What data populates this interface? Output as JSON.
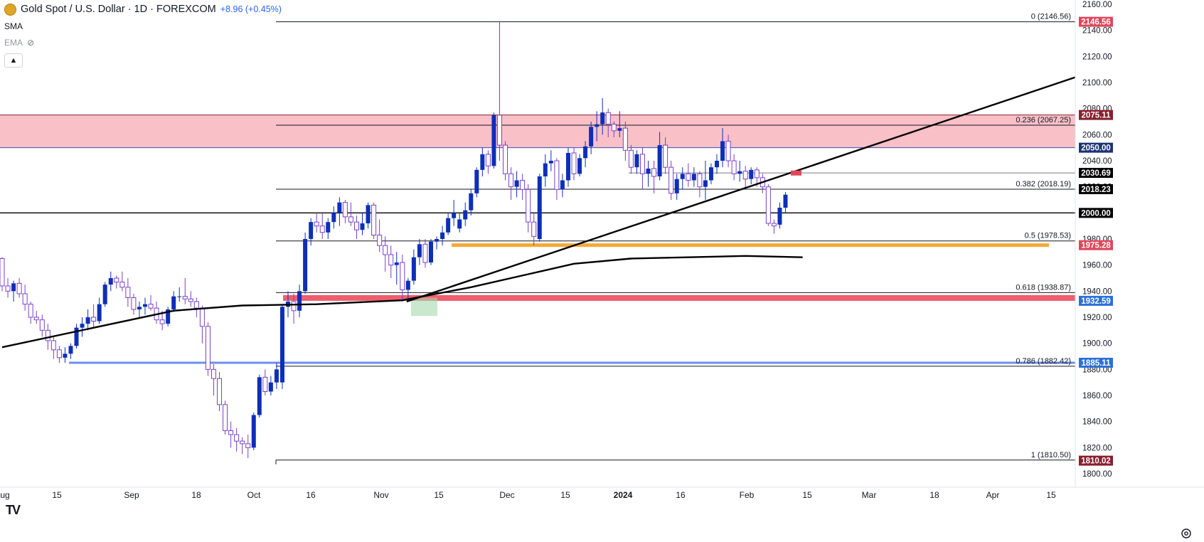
{
  "header": {
    "symbol": "Gold Spot / U.S. Dollar · 1D · FOREXCOM",
    "change": "+8.96 (+0.45%)",
    "indicators": [
      "SMA",
      "EMA"
    ],
    "icons": [
      "gold-coin-icon",
      "eye-hidden-icon",
      "chevron-up-icon",
      "tradingview-logo-icon",
      "settings-icon"
    ]
  },
  "colors": {
    "up": "#0d2fb8",
    "down_fill": "#ffffff",
    "down_stroke": "#7b3fc4",
    "resistance_zone": "#f9c0c8",
    "support_zone": "#ee5e6f",
    "orange_level": "#f7a936",
    "blue_level": "#6b8ff0",
    "green_box": "#a5d8ab",
    "ma": "#000000",
    "label_dark_red": "#8a1f2e",
    "label_red": "#e0475a",
    "label_navy": "#1b3476",
    "label_black": "#000000",
    "label_blue": "#2e6fd6"
  },
  "chart_data": {
    "type": "candlestick",
    "title": "Gold Spot / U.S. Dollar · 1D · FOREXCOM",
    "x_ticks": [
      "Aug",
      "15",
      "Sep",
      "18",
      "Oct",
      "16",
      "Nov",
      "15",
      "Dec",
      "15",
      "2024",
      "16",
      "Feb",
      "15",
      "Mar",
      "18",
      "Apr",
      "15"
    ],
    "y_ticks": [
      1800,
      1820,
      1840,
      1860,
      1880,
      1900,
      1920,
      1940,
      1960,
      1980,
      2000,
      2020,
      2040,
      2060,
      2080,
      2100,
      2120,
      2140,
      2160
    ],
    "ylim": [
      1794,
      2163
    ],
    "ohlc": [
      [
        1965,
        1966,
        1940,
        1944
      ],
      [
        1944,
        1950,
        1935,
        1940
      ],
      [
        1940,
        1948,
        1932,
        1946
      ],
      [
        1946,
        1950,
        1935,
        1938
      ],
      [
        1938,
        1945,
        1925,
        1930
      ],
      [
        1930,
        1932,
        1915,
        1920
      ],
      [
        1920,
        1925,
        1915,
        1918
      ],
      [
        1918,
        1922,
        1905,
        1910
      ],
      [
        1910,
        1915,
        1895,
        1902
      ],
      [
        1902,
        1905,
        1888,
        1895
      ],
      [
        1895,
        1898,
        1885,
        1889
      ],
      [
        1889,
        1897,
        1885,
        1892
      ],
      [
        1892,
        1900,
        1888,
        1898
      ],
      [
        1898,
        1915,
        1896,
        1912
      ],
      [
        1912,
        1920,
        1905,
        1915
      ],
      [
        1915,
        1926,
        1910,
        1920
      ],
      [
        1920,
        1930,
        1912,
        1917
      ],
      [
        1917,
        1935,
        1915,
        1930
      ],
      [
        1930,
        1947,
        1928,
        1945
      ],
      [
        1945,
        1955,
        1940,
        1950
      ],
      [
        1950,
        1952,
        1942,
        1947
      ],
      [
        1947,
        1955,
        1940,
        1943
      ],
      [
        1943,
        1950,
        1928,
        1935
      ],
      [
        1935,
        1938,
        1922,
        1926
      ],
      [
        1926,
        1932,
        1920,
        1928
      ],
      [
        1928,
        1935,
        1922,
        1930
      ],
      [
        1930,
        1937,
        1925,
        1927
      ],
      [
        1927,
        1932,
        1915,
        1918
      ],
      [
        1918,
        1925,
        1910,
        1915
      ],
      [
        1915,
        1928,
        1913,
        1926
      ],
      [
        1926,
        1940,
        1924,
        1936
      ],
      [
        1936,
        1943,
        1932,
        1936
      ],
      [
        1936,
        1950,
        1930,
        1934
      ],
      [
        1934,
        1940,
        1928,
        1932
      ],
      [
        1932,
        1935,
        1920,
        1927
      ],
      [
        1927,
        1929,
        1900,
        1913
      ],
      [
        1913,
        1916,
        1875,
        1880
      ],
      [
        1880,
        1884,
        1860,
        1873
      ],
      [
        1873,
        1878,
        1848,
        1853
      ],
      [
        1853,
        1856,
        1830,
        1833
      ],
      [
        1833,
        1840,
        1820,
        1830
      ],
      [
        1830,
        1835,
        1817,
        1825
      ],
      [
        1825,
        1828,
        1815,
        1823
      ],
      [
        1823,
        1830,
        1812,
        1820
      ],
      [
        1820,
        1847,
        1818,
        1845
      ],
      [
        1845,
        1876,
        1843,
        1874
      ],
      [
        1874,
        1880,
        1860,
        1863
      ],
      [
        1863,
        1875,
        1860,
        1870
      ],
      [
        1870,
        1885,
        1865,
        1880
      ],
      [
        1870,
        1930,
        1865,
        1928
      ],
      [
        1928,
        1940,
        1920,
        1932
      ],
      [
        1932,
        1938,
        1915,
        1925
      ],
      [
        1925,
        1945,
        1920,
        1940
      ],
      [
        1940,
        1985,
        1938,
        1980
      ],
      [
        1980,
        1996,
        1975,
        1993
      ],
      [
        1993,
        2000,
        1985,
        1990
      ],
      [
        1990,
        2000,
        1980,
        1985
      ],
      [
        1985,
        1996,
        1980,
        1993
      ],
      [
        1993,
        2005,
        1988,
        2000
      ],
      [
        2000,
        2012,
        1990,
        2008
      ],
      [
        2008,
        2010,
        1992,
        1997
      ],
      [
        1997,
        2008,
        1990,
        1993
      ],
      [
        1993,
        1998,
        1980,
        1987
      ],
      [
        1987,
        2000,
        1983,
        1992
      ],
      [
        1992,
        2008,
        1988,
        2006
      ],
      [
        2006,
        2008,
        1980,
        1983
      ],
      [
        1983,
        1995,
        1970,
        1975
      ],
      [
        1975,
        1982,
        1955,
        1968
      ],
      [
        1968,
        1975,
        1950,
        1960
      ],
      [
        1960,
        1970,
        1945,
        1962
      ],
      [
        1962,
        1968,
        1932,
        1941
      ],
      [
        1941,
        1950,
        1933,
        1948
      ],
      [
        1948,
        1972,
        1945,
        1966
      ],
      [
        1966,
        1980,
        1960,
        1976
      ],
      [
        1976,
        1980,
        1958,
        1962
      ],
      [
        1962,
        1980,
        1960,
        1978
      ],
      [
        1978,
        1982,
        1972,
        1980
      ],
      [
        1980,
        1990,
        1975,
        1985
      ],
      [
        1985,
        2000,
        1983,
        1996
      ],
      [
        1996,
        2010,
        1990,
        2000
      ],
      [
        1988,
        2000,
        1985,
        1995
      ],
      [
        1995,
        2008,
        1990,
        2002
      ],
      [
        2002,
        2018,
        1998,
        2015
      ],
      [
        2015,
        2035,
        2012,
        2033
      ],
      [
        2033,
        2050,
        2028,
        2045
      ],
      [
        2045,
        2048,
        2030,
        2036
      ],
      [
        2036,
        2077,
        2034,
        2075
      ],
      [
        2075,
        2146.56,
        2040,
        2052
      ],
      [
        2052,
        2055,
        2025,
        2030
      ],
      [
        2030,
        2035,
        2010,
        2020
      ],
      [
        2020,
        2032,
        2012,
        2025
      ],
      [
        2025,
        2030,
        2010,
        2018
      ],
      [
        2018,
        2022,
        1985,
        1993
      ],
      [
        1993,
        2000,
        1975,
        1982
      ],
      [
        1980,
        2030,
        1978,
        2028
      ],
      [
        2028,
        2045,
        2020,
        2038
      ],
      [
        2038,
        2048,
        2032,
        2040
      ],
      [
        2040,
        2042,
        2010,
        2018
      ],
      [
        2018,
        2030,
        2012,
        2025
      ],
      [
        2025,
        2050,
        2020,
        2046
      ],
      [
        2046,
        2050,
        2025,
        2030
      ],
      [
        2030,
        2045,
        2028,
        2042
      ],
      [
        2042,
        2055,
        2035,
        2051
      ],
      [
        2051,
        2070,
        2045,
        2066
      ],
      [
        2066,
        2078,
        2055,
        2068
      ],
      [
        2068,
        2088,
        2060,
        2077
      ],
      [
        2077,
        2080,
        2058,
        2068
      ],
      [
        2068,
        2070,
        2058,
        2063
      ],
      [
        2063,
        2078,
        2058,
        2065
      ],
      [
        2065,
        2070,
        2040,
        2048
      ],
      [
        2048,
        2052,
        2030,
        2035
      ],
      [
        2035,
        2048,
        2030,
        2045
      ],
      [
        2045,
        2050,
        2018,
        2030
      ],
      [
        2030,
        2040,
        2020,
        2034
      ],
      [
        2034,
        2040,
        2015,
        2028
      ],
      [
        2028,
        2062,
        2025,
        2052
      ],
      [
        2052,
        2058,
        2030,
        2035
      ],
      [
        2035,
        2040,
        2010,
        2015
      ],
      [
        2015,
        2030,
        2010,
        2026
      ],
      [
        2026,
        2035,
        2018,
        2030
      ],
      [
        2030,
        2038,
        2020,
        2025
      ],
      [
        2025,
        2035,
        2020,
        2030
      ],
      [
        2030,
        2032,
        2012,
        2020
      ],
      [
        2020,
        2040,
        2010,
        2025
      ],
      [
        2025,
        2038,
        2022,
        2035
      ],
      [
        2035,
        2045,
        2030,
        2040
      ],
      [
        2040,
        2065,
        2035,
        2055
      ],
      [
        2055,
        2060,
        2035,
        2040
      ],
      [
        2040,
        2045,
        2025,
        2030
      ],
      [
        2030,
        2040,
        2024,
        2032
      ],
      [
        2032,
        2036,
        2018,
        2026
      ],
      [
        2026,
        2035,
        2022,
        2033
      ],
      [
        2033,
        2035,
        2020,
        2027
      ],
      [
        2027,
        2030,
        2015,
        2020
      ],
      [
        2020,
        2022,
        1990,
        1992
      ],
      [
        1992,
        1995,
        1984,
        1990
      ],
      [
        1991,
        2008,
        1988,
        2004
      ],
      [
        2004,
        2016,
        2000,
        2014
      ]
    ],
    "moving_average": [
      {
        "i": 0,
        "v": 1897
      },
      {
        "i": 15,
        "v": 1911
      },
      {
        "i": 30,
        "v": 1925
      },
      {
        "i": 42,
        "v": 1929
      },
      {
        "i": 55,
        "v": 1930
      },
      {
        "i": 70,
        "v": 1933
      },
      {
        "i": 82,
        "v": 1943
      },
      {
        "i": 92,
        "v": 1953
      },
      {
        "i": 100,
        "v": 1961
      },
      {
        "i": 110,
        "v": 1965
      },
      {
        "i": 120,
        "v": 1966
      },
      {
        "i": 130,
        "v": 1967
      },
      {
        "i": 140,
        "v": 1966
      }
    ],
    "trendline": {
      "from_i": 71,
      "from_v": 1932,
      "to_i": 186,
      "to_v": 2104
    },
    "fib_levels": [
      {
        "ratio": "0",
        "label": "0 (2146.56)",
        "value": 2146.56
      },
      {
        "ratio": "0.236",
        "label": "0.236 (2067.25)",
        "value": 2067.25
      },
      {
        "ratio": "0.382",
        "label": "0.382 (2018.19)",
        "value": 2018.19
      },
      {
        "ratio": "0.5",
        "label": "0.5 (1978.53)",
        "value": 1978.53
      },
      {
        "ratio": "0.618",
        "label": "0.618 (1938.87)",
        "value": 1938.87
      },
      {
        "ratio": "0.786",
        "label": "0.786 (1882.42)",
        "value": 1882.42
      },
      {
        "ratio": "1",
        "label": "1 (1810.50)",
        "value": 1810.5
      }
    ],
    "zones": [
      {
        "name": "resistance",
        "from": 2050.0,
        "to": 2075.11
      },
      {
        "name": "support",
        "from": 1932.59,
        "to": 1937.0
      }
    ],
    "horizontal_levels": [
      {
        "value": 2000.0,
        "color": "#000000"
      },
      {
        "value": 2030.69,
        "color": "#787b86"
      },
      {
        "value": 1975.28,
        "color": "#f7a936"
      },
      {
        "value": 1885.11,
        "color": "#6b8ff0"
      }
    ],
    "price_labels": [
      {
        "text": "2146.56",
        "value": 2146.56,
        "color": "#e0475a"
      },
      {
        "text": "2075.11",
        "value": 2075.11,
        "color": "#8a1f2e"
      },
      {
        "text": "2050.00",
        "value": 2050.0,
        "color": "#1b3476"
      },
      {
        "text": "2030.69",
        "value": 2030.69,
        "color": "#000000"
      },
      {
        "text": "2018.23",
        "value": 2018.23,
        "color": "#000000"
      },
      {
        "text": "2000.00",
        "value": 2000.0,
        "color": "#000000"
      },
      {
        "text": "1975.28",
        "value": 1975.28,
        "color": "#e0475a"
      },
      {
        "text": "1932.59",
        "value": 1932.59,
        "color": "#2e6fd6"
      },
      {
        "text": "1885.11",
        "value": 1885.11,
        "color": "#2e6fd6"
      },
      {
        "text": "1810.02",
        "value": 1810.02,
        "color": "#8a1f2e"
      }
    ]
  }
}
